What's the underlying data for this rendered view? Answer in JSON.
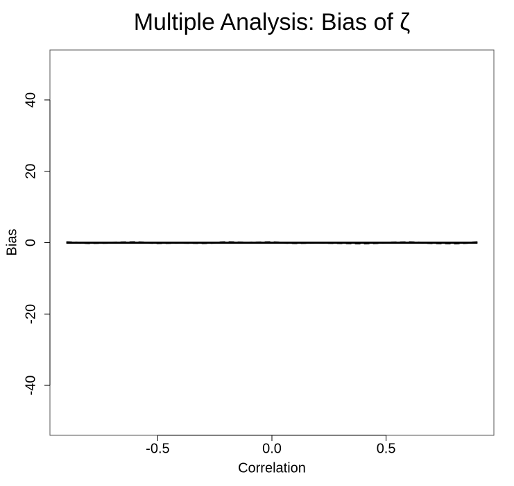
{
  "chart_data": {
    "type": "line",
    "title": "Multiple Analysis: Bias of ζ",
    "x_label": "Correlation",
    "y_label": "Bias",
    "x": [
      -0.9,
      -0.8,
      -0.7,
      -0.6,
      -0.5,
      -0.4,
      -0.3,
      -0.2,
      -0.1,
      0.0,
      0.1,
      0.2,
      0.3,
      0.4,
      0.5,
      0.6,
      0.7,
      0.8,
      0.9
    ],
    "series": [
      {
        "color": "#000000",
        "dash": false,
        "values": [
          0.0,
          0.0,
          0.0,
          0.0,
          0.0,
          0.0,
          0.0,
          0.0,
          0.0,
          0.0,
          0.0,
          0.0,
          0.0,
          0.0,
          0.0,
          0.0,
          0.0,
          0.0,
          0.0
        ]
      },
      {
        "color": "#000000",
        "dash": true,
        "values": [
          0.1,
          -0.1,
          0.0,
          0.1,
          -0.1,
          0.0,
          -0.1,
          0.1,
          0.0,
          0.1,
          -0.1,
          0.0,
          -0.1,
          -0.2,
          0.0,
          0.1,
          -0.1,
          -0.2,
          0.1
        ]
      }
    ],
    "xlim": [
      -0.972,
      0.972
    ],
    "ylim": [
      -54,
      54
    ],
    "xticks": [
      -0.5,
      {
        "value": 0,
        "label": "0.0"
      },
      0.5
    ],
    "yticks": [
      -40,
      -20,
      0,
      20,
      40
    ],
    "grid": false
  }
}
